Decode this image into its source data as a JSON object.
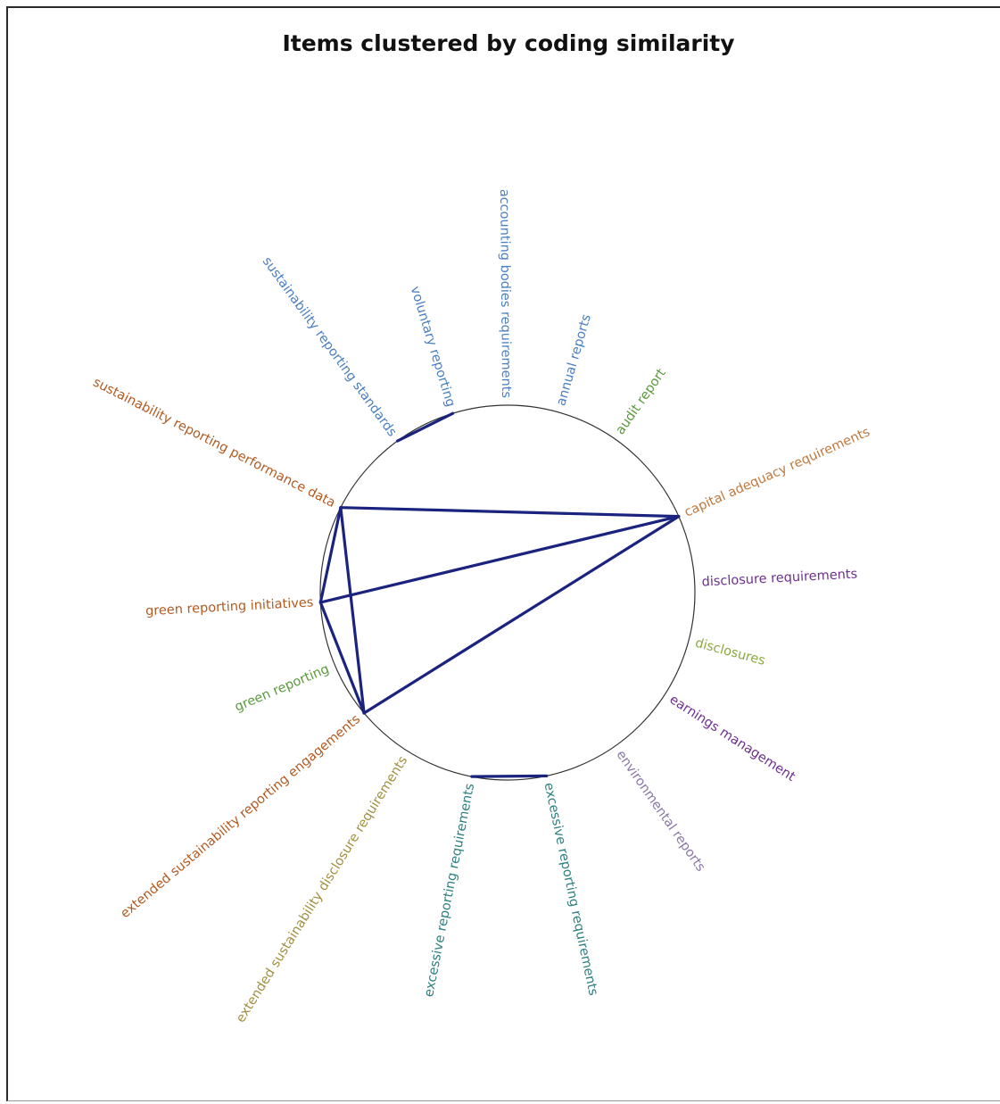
{
  "title": "Items clustered by coding similarity",
  "items": [
    {
      "id": "accounting_bodies",
      "label": "accounting bodies requirements",
      "angle": -90.5,
      "color": "#4a7fc0"
    },
    {
      "id": "annual_reports",
      "label": "annual reports",
      "angle": -74,
      "color": "#4a7fc0"
    },
    {
      "id": "audit_report",
      "label": "audit report",
      "angle": -55,
      "color": "#5a9a3c"
    },
    {
      "id": "capital_adequacy",
      "label": "capital adequacy requirements",
      "angle": -24,
      "color": "#c0793e"
    },
    {
      "id": "disclosure_requirements",
      "label": "disclosure requirements",
      "angle": -3,
      "color": "#6f2f8f"
    },
    {
      "id": "disclosures",
      "label": "disclosures",
      "angle": 15,
      "color": "#8aaa40"
    },
    {
      "id": "earnings_management",
      "label": "earnings management",
      "angle": 33,
      "color": "#6f2f8f"
    },
    {
      "id": "environmental_reports",
      "label": "environmental reports",
      "angle": 55,
      "color": "#8a77a8"
    },
    {
      "id": "excessive_reporting_b",
      "label": "excessive reporting requirements",
      "angle": 78,
      "color": "#2e8080"
    },
    {
      "id": "excessive_reporting_a",
      "label": "excessive reporting requirements",
      "angle": 101,
      "color": "#2e8080"
    },
    {
      "id": "extended_disclosure",
      "label": "extended sustainability disclosure requirements",
      "angle": 122,
      "color": "#a29040"
    },
    {
      "id": "extended_engagements",
      "label": "extended sustainability reporting engagements",
      "angle": 140,
      "color": "#b35a20"
    },
    {
      "id": "green_reporting",
      "label": "green reporting",
      "angle": 157,
      "color": "#5a9a3c"
    },
    {
      "id": "green_initiatives",
      "label": "green reporting initiatives",
      "angle": 177,
      "color": "#b35a20"
    },
    {
      "id": "sus_performance",
      "label": "sustainability reporting performance data",
      "angle": -153,
      "color": "#b35a20"
    },
    {
      "id": "sus_standards",
      "label": "sustainability reporting standards",
      "angle": -126,
      "color": "#4a7fc0"
    },
    {
      "id": "voluntary_reporting",
      "label": "voluntary reporting",
      "angle": -107,
      "color": "#4a7fc0"
    }
  ],
  "links": [
    {
      "source": "sus_standards",
      "target": "voluntary_reporting"
    },
    {
      "source": "excessive_reporting_b",
      "target": "excessive_reporting_a"
    },
    {
      "source": "sus_performance",
      "target": "capital_adequacy"
    },
    {
      "source": "sus_performance",
      "target": "green_initiatives"
    },
    {
      "source": "sus_performance",
      "target": "extended_engagements"
    },
    {
      "source": "green_initiatives",
      "target": "capital_adequacy"
    },
    {
      "source": "green_initiatives",
      "target": "extended_engagements"
    },
    {
      "source": "capital_adequacy",
      "target": "extended_engagements"
    }
  ],
  "colors": {
    "link": "#1a237e",
    "circle": "#333333"
  }
}
